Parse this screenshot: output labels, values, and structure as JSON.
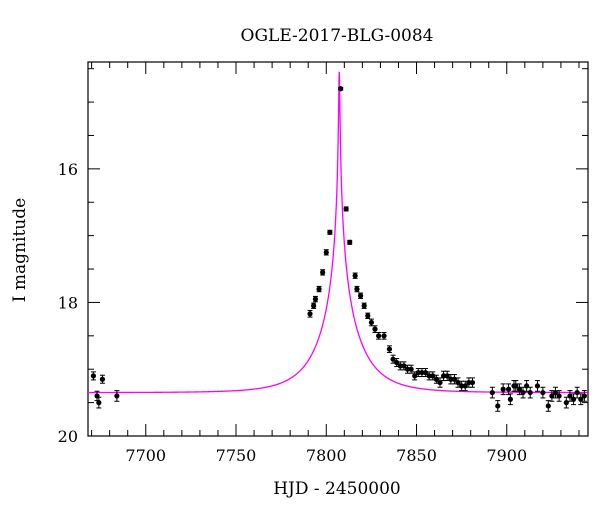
{
  "chart_data": {
    "type": "scatter",
    "title": "OGLE-2017-BLG-0084",
    "xlabel": "HJD - 2450000",
    "ylabel": "I magnitude",
    "xlim": [
      7668,
      7945
    ],
    "ylim": [
      20.0,
      14.4
    ],
    "y_inverted": true,
    "x_ticks": [
      7700,
      7750,
      7800,
      7850,
      7900
    ],
    "y_ticks": [
      16,
      18,
      20
    ],
    "grid": false,
    "legend": "none",
    "colors": {
      "data": "#000000",
      "model": "#ff00ff"
    },
    "model": {
      "t0": 7807.2,
      "base_mag": 19.35,
      "u0": 0.012,
      "tE": 22.0
    },
    "series": [
      {
        "x": [
          7671,
          7673,
          7674,
          7676,
          7684,
          7791,
          7793,
          7794,
          7796,
          7798,
          7800,
          7802,
          7808,
          7811,
          7813,
          7816,
          7817,
          7819,
          7821,
          7823,
          7825,
          7827,
          7829,
          7832,
          7835,
          7837,
          7839,
          7841,
          7843,
          7845,
          7847,
          7849,
          7851,
          7853,
          7855,
          7857,
          7859,
          7861,
          7863,
          7865,
          7867,
          7869,
          7871,
          7873,
          7875,
          7877,
          7879,
          7881,
          7892,
          7895,
          7898,
          7901,
          7902,
          7904,
          7905,
          7907,
          7909,
          7911,
          7913,
          7917,
          7920,
          7923,
          7925,
          7927,
          7929,
          7933,
          7935,
          7937,
          7939,
          7941,
          7943
        ],
        "y": [
          19.1,
          19.4,
          19.5,
          19.15,
          19.4,
          18.17,
          18.05,
          17.95,
          17.8,
          17.55,
          17.25,
          16.95,
          14.8,
          16.6,
          17.1,
          17.6,
          17.8,
          17.9,
          18.05,
          18.2,
          18.3,
          18.4,
          18.5,
          18.5,
          18.7,
          18.85,
          18.9,
          18.95,
          18.95,
          19.0,
          19.0,
          19.1,
          19.05,
          19.05,
          19.05,
          19.1,
          19.1,
          19.15,
          19.2,
          19.1,
          19.1,
          19.15,
          19.15,
          19.2,
          19.25,
          19.25,
          19.2,
          19.2,
          19.35,
          19.55,
          19.3,
          19.3,
          19.45,
          19.25,
          19.25,
          19.3,
          19.35,
          19.25,
          19.35,
          19.25,
          19.35,
          19.55,
          19.4,
          19.35,
          19.4,
          19.5,
          19.4,
          19.45,
          19.35,
          19.45,
          19.4
        ],
        "err": [
          0.06,
          0.07,
          0.08,
          0.06,
          0.08,
          0.05,
          0.04,
          0.04,
          0.04,
          0.04,
          0.04,
          0.03,
          0.02,
          0.03,
          0.03,
          0.04,
          0.04,
          0.04,
          0.04,
          0.04,
          0.05,
          0.05,
          0.05,
          0.05,
          0.05,
          0.06,
          0.06,
          0.06,
          0.06,
          0.06,
          0.06,
          0.06,
          0.06,
          0.06,
          0.06,
          0.06,
          0.06,
          0.06,
          0.07,
          0.07,
          0.07,
          0.07,
          0.07,
          0.07,
          0.07,
          0.07,
          0.07,
          0.07,
          0.08,
          0.08,
          0.08,
          0.08,
          0.08,
          0.08,
          0.08,
          0.08,
          0.08,
          0.08,
          0.08,
          0.08,
          0.08,
          0.08,
          0.08,
          0.08,
          0.08,
          0.08,
          0.08,
          0.08,
          0.08,
          0.08,
          0.08
        ]
      }
    ]
  }
}
